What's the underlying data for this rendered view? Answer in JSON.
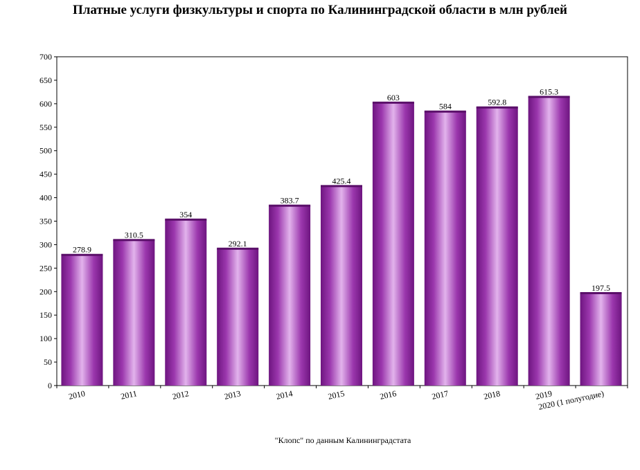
{
  "chart_data": {
    "type": "bar",
    "title": "Платные услуги физкультуры и спорта по Калининградской области в млн рублей",
    "source": "\"Клопс\" по данным Калининградстата",
    "categories": [
      "2010",
      "2011",
      "2012",
      "2013",
      "2014",
      "2015",
      "2016",
      "2017",
      "2018",
      "2019",
      "2020 (1 полугодие)"
    ],
    "values": [
      278.9,
      310.5,
      354,
      292.1,
      383.7,
      425.4,
      603,
      584,
      592.8,
      615.3,
      197.5
    ],
    "value_labels": [
      "278.9",
      "310.5",
      "354",
      "292.1",
      "383.7",
      "425.4",
      "603",
      "584",
      "592.8",
      "615.3",
      "197.5"
    ],
    "ylim": [
      0,
      700
    ],
    "yticks": [
      "0",
      "50",
      "100",
      "150",
      "200",
      "250",
      "300",
      "350",
      "400",
      "450",
      "500",
      "550",
      "600",
      "650",
      "700"
    ],
    "xlabel": "",
    "ylabel": "",
    "grid": false,
    "legend": "none",
    "bar_color_edge": "#7a1c8c",
    "bar_color_center": "#e2b3ec"
  }
}
